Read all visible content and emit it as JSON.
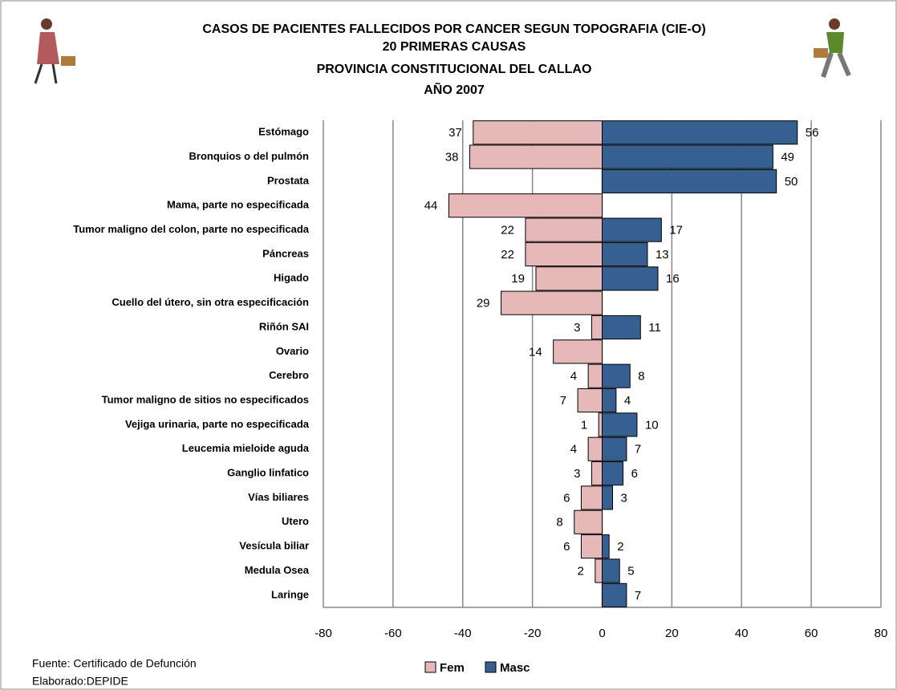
{
  "chart_data": {
    "type": "bar",
    "orientation": "horizontal",
    "title": [
      "CASOS DE PACIENTES FALLECIDOS POR CANCER SEGUN TOPOGRAFIA (CIE-O)",
      "20 PRIMERAS CAUSAS",
      "PROVINCIA CONSTITUCIONAL  DEL CALLAO",
      "AÑO 2007"
    ],
    "categories": [
      "Estómago",
      "Bronquios o del pulmón",
      "Prostata",
      "Mama, parte no especificada",
      "Tumor maligno del colon, parte no especificada",
      "Páncreas",
      "Higado",
      "Cuello del útero, sin otra especificación",
      "Riñón SAI",
      "Ovario",
      "Cerebro",
      "Tumor maligno de sitios no especificados",
      "Vejiga urinaria, parte no especificada",
      "Leucemia mieloide aguda",
      "Ganglio linfatico",
      "Vías biliares",
      "Utero",
      "Vesícula biliar",
      "Medula Osea",
      "Laringe"
    ],
    "series": [
      {
        "name": "Fem",
        "color": "#e6b8b7",
        "values": [
          -37,
          -38,
          null,
          -44,
          -22,
          -22,
          -19,
          -29,
          -3,
          -14,
          -4,
          -7,
          -1,
          -4,
          -3,
          -6,
          -8,
          -6,
          -2,
          null
        ],
        "value_labels": [
          "37",
          "38",
          null,
          "44",
          "22",
          "22",
          "19",
          "29",
          "3",
          "14",
          "4",
          "7",
          "1",
          "4",
          "3",
          "6",
          "8",
          "6",
          "2",
          null
        ]
      },
      {
        "name": "Masc",
        "color": "#366092",
        "values": [
          56,
          49,
          50,
          null,
          17,
          13,
          16,
          null,
          11,
          null,
          8,
          4,
          10,
          7,
          6,
          3,
          null,
          2,
          5,
          7
        ]
      }
    ],
    "xlim": [
      -80,
      80
    ],
    "xticks": [
      -80,
      -60,
      -40,
      -20,
      0,
      20,
      40,
      60,
      80
    ],
    "grid": true,
    "legend": "bottom",
    "source": "Fuente: Certificado de Defunción",
    "credit": "Elaborado:DEPIDE"
  }
}
